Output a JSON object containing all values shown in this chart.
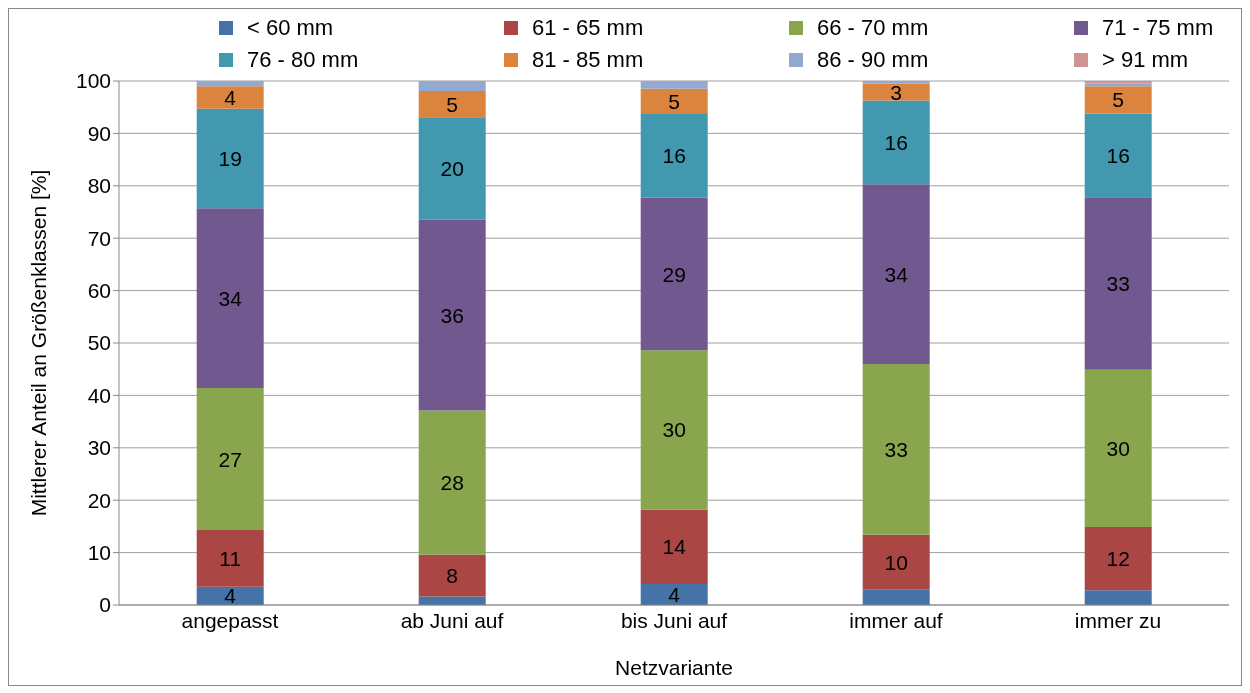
{
  "chart_data": {
    "type": "bar",
    "stacked": true,
    "xlabel": "Netzvariante",
    "ylabel": "Mittlerer Anteil an Größenklassen [%]",
    "categories": [
      "angepasst",
      "ab Juni auf",
      "bis Juni auf",
      "immer auf",
      "immer zu"
    ],
    "series": [
      {
        "name": "< 60 mm",
        "color": "#4572a7",
        "values": [
          3.5,
          1.6,
          4.0,
          3.0,
          2.8
        ],
        "value_labels": [
          "4",
          null,
          "4",
          null,
          null
        ]
      },
      {
        "name": "61 - 65 mm",
        "color": "#aa4643",
        "values": [
          10.8,
          8.0,
          14.2,
          10.4,
          12.1
        ],
        "value_labels": [
          "11",
          "8",
          "14",
          "10",
          "12"
        ]
      },
      {
        "name": "66 - 70 mm",
        "color": "#89a54e",
        "values": [
          27.1,
          27.5,
          30.4,
          32.6,
          30.0
        ],
        "value_labels": [
          "27",
          "28",
          "30",
          "33",
          "30"
        ]
      },
      {
        "name": "71 - 75 mm",
        "color": "#71588f",
        "values": [
          34.3,
          36.4,
          29.1,
          34.3,
          32.9
        ],
        "value_labels": [
          "34",
          "36",
          "29",
          "34",
          "33"
        ]
      },
      {
        "name": "76 - 80 mm",
        "color": "#4198af",
        "values": [
          19.0,
          19.6,
          16.0,
          16.0,
          16.0
        ],
        "value_labels": [
          "19",
          "20",
          "16",
          "16",
          "16"
        ]
      },
      {
        "name": "81 - 85 mm",
        "color": "#db843d",
        "values": [
          4.3,
          5.0,
          4.8,
          3.2,
          5.2
        ],
        "value_labels": [
          "4",
          "5",
          "5",
          "3",
          "5"
        ]
      },
      {
        "name": "86 - 90 mm",
        "color": "#93a9cf",
        "values": [
          1.0,
          1.9,
          1.5,
          0.5,
          0.5
        ],
        "value_labels": [
          null,
          null,
          null,
          null,
          null
        ]
      },
      {
        "name": "> 91 mm",
        "color": "#d19392",
        "values": [
          0,
          0,
          0,
          0,
          0.5
        ],
        "value_labels": [
          null,
          null,
          null,
          null,
          null
        ]
      }
    ],
    "ylim": [
      0,
      100
    ],
    "yticks": [
      0,
      10,
      20,
      30,
      40,
      50,
      60,
      70,
      80,
      90,
      100
    ],
    "grid": "y",
    "legend": "top"
  }
}
